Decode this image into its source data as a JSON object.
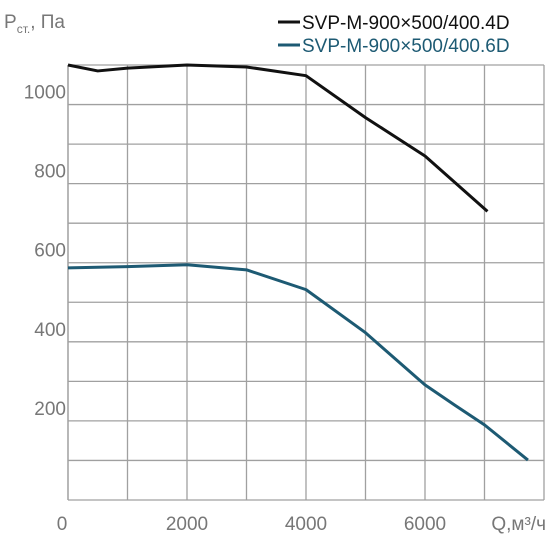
{
  "chart_data": {
    "type": "line",
    "y_label": {
      "symbol": "P",
      "subscript": "ст.",
      "unit": ", Па"
    },
    "x_label": "Q,м³/ч",
    "xlim": [
      0,
      8000
    ],
    "xticks": [
      0,
      2000,
      4000,
      6000
    ],
    "xminorticks": [
      1000,
      3000,
      5000,
      7000,
      8000
    ],
    "ylim": [
      0,
      1100
    ],
    "yticks": [
      200,
      400,
      600,
      800,
      1000
    ],
    "yminorticks": [
      100,
      300,
      500,
      700,
      900,
      1100
    ],
    "grid": true,
    "series": [
      {
        "name": "SVP-M-900×500/400.4D",
        "color": "#111111",
        "x": [
          0,
          500,
          1000,
          2000,
          3000,
          4000,
          5000,
          6000,
          7050
        ],
        "values": [
          1100,
          1085,
          1092,
          1100,
          1095,
          1073,
          967,
          870,
          730
        ]
      },
      {
        "name": "SVP-M-900×500/400.6D",
        "color": "#1d5a73",
        "x": [
          0,
          1000,
          2000,
          3000,
          4000,
          5000,
          6000,
          6500,
          7000,
          7730
        ],
        "values": [
          587,
          590,
          595,
          582,
          532,
          423,
          291,
          240,
          190,
          101
        ]
      }
    ]
  }
}
